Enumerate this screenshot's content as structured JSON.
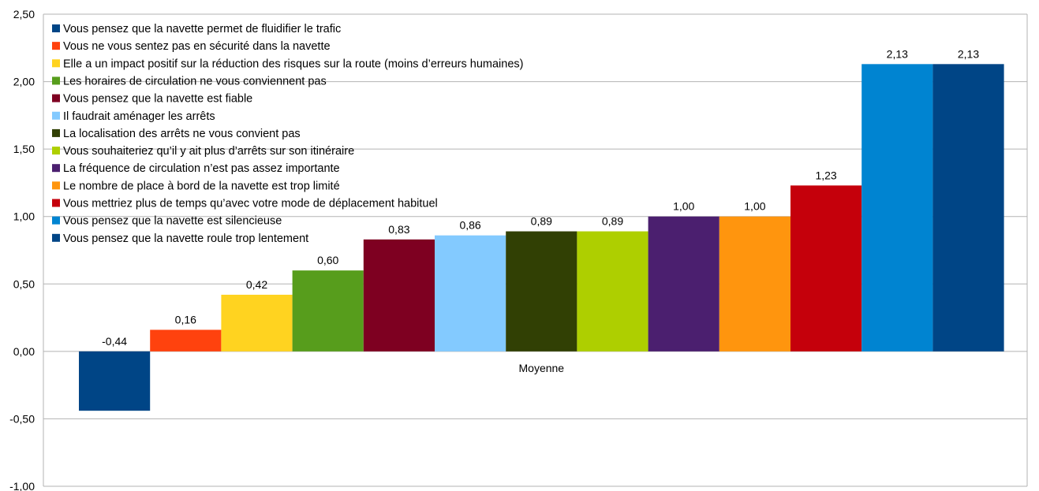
{
  "chart_data": {
    "type": "bar",
    "title": "",
    "xlabel": "",
    "ylabel": "",
    "categories": [
      "Moyenne"
    ],
    "ylim": [
      -1.0,
      2.5
    ],
    "yticks": [
      "-1,00",
      "-0,50",
      "0,00",
      "0,50",
      "1,00",
      "1,50",
      "2,00",
      "2,50"
    ],
    "ytick_values": [
      -1.0,
      -0.5,
      0.0,
      0.5,
      1.0,
      1.5,
      2.0,
      2.5
    ],
    "grid": true,
    "legend_position": "top-left",
    "series": [
      {
        "name": "Vous pensez que la navette roule trop lentement",
        "value": -0.44,
        "label": "-0,44",
        "color": "#004586"
      },
      {
        "name": "Vous ne vous sentez pas en sécurité dans la navette",
        "value": 0.16,
        "label": "0,16",
        "color": "#ff420e"
      },
      {
        "name": "Elle a un impact positif sur la réduction des risques sur la route (moins d’erreurs humaines)",
        "value": 0.42,
        "label": "0,42",
        "color": "#ffd320"
      },
      {
        "name": "Les horaires de circulation ne vous conviennent pas",
        "value": 0.6,
        "label": "0,60",
        "color": "#579d1c"
      },
      {
        "name": "Vous pensez que la navette est fiable",
        "value": 0.83,
        "label": "0,83",
        "color": "#7e0021"
      },
      {
        "name": "Il faudrait aménager les arrêts",
        "value": 0.86,
        "label": "0,86",
        "color": "#83caff"
      },
      {
        "name": "La localisation des arrêts ne vous convient pas",
        "value": 0.89,
        "label": "0,89",
        "color": "#314004"
      },
      {
        "name": "Vous souhaiteriez qu’il y ait plus d’arrêts sur son itinéraire",
        "value": 0.89,
        "label": "0,89",
        "color": "#aecf00"
      },
      {
        "name": "La fréquence de circulation n’est pas assez importante",
        "value": 1.0,
        "label": "1,00",
        "color": "#4b1f6f"
      },
      {
        "name": "Le nombre de place à bord de la navette est trop limité",
        "value": 1.0,
        "label": "1,00",
        "color": "#ff950e"
      },
      {
        "name": "Vous mettriez plus de temps qu’avec votre mode de déplacement habituel",
        "value": 1.23,
        "label": "1,23",
        "color": "#c5000b"
      },
      {
        "name": "Vous pensez que la navette  est silencieuse",
        "value": 2.13,
        "label": "2,13",
        "color": "#0084d1"
      },
      {
        "name": "Vous pensez que la navette permet de fluidifier le trafic",
        "value": 2.13,
        "label": "2,13",
        "color": "#004586"
      }
    ],
    "legend_order": [
      12,
      1,
      2,
      3,
      4,
      5,
      6,
      7,
      8,
      9,
      10,
      11,
      0
    ]
  }
}
